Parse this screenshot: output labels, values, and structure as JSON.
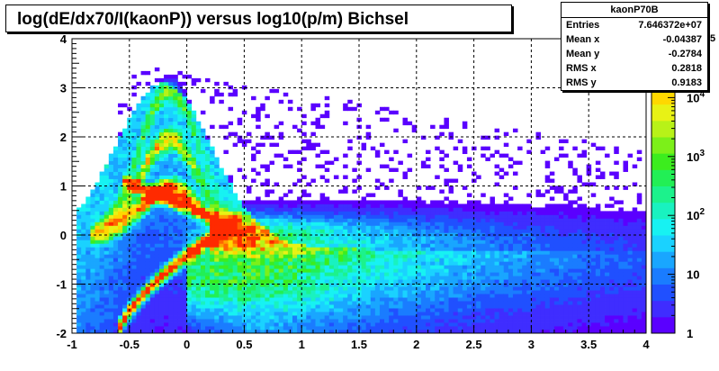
{
  "title": "log(dE/dx70/I(kaonP)) versus log10(p/m) Bichsel",
  "stats": {
    "name": "kaonP70B",
    "rows": [
      {
        "label": "Entries",
        "value": "7.646372e+07"
      },
      {
        "label": "Mean x",
        "value": "-0.04387"
      },
      {
        "label": "Mean y",
        "value": "-0.2784"
      },
      {
        "label": "RMS x",
        "value": "0.2818"
      },
      {
        "label": "RMS y",
        "value": "0.9183"
      }
    ]
  },
  "chart_data": {
    "type": "heatmap",
    "title": "log(dE/dx70/I(kaonP)) versus log10(p/m) Bichsel",
    "xlim": [
      -1,
      4
    ],
    "ylim": [
      -2,
      4
    ],
    "x_ticks": [
      "-1",
      "-0.5",
      "0",
      "0.5",
      "1",
      "1.5",
      "2",
      "2.5",
      "3",
      "3.5",
      "4"
    ],
    "y_ticks": [
      "-2",
      "-1",
      "0",
      "1",
      "2",
      "3",
      "4"
    ],
    "z_scale": "log",
    "z_ticks": [
      {
        "value": 1,
        "label": "1"
      },
      {
        "value": 10,
        "label": "10"
      },
      {
        "value": 100,
        "label": "10",
        "exp": "2"
      },
      {
        "value": 1000,
        "label": "10",
        "exp": "3"
      },
      {
        "value": 10000,
        "label": "10",
        "exp": "4"
      }
    ],
    "z_top_label": "5",
    "grid": true,
    "palette": [
      "#5a00ff",
      "#3f2dff",
      "#2050ff",
      "#1a7cff",
      "#19a6ff",
      "#1ad2ff",
      "#17f2f2",
      "#19f2c0",
      "#1cf28c",
      "#22ef55",
      "#3ced1e",
      "#7cf019",
      "#b8f218",
      "#e8f215",
      "#ffd800",
      "#ffa000",
      "#ff6600",
      "#ff2a00"
    ]
  }
}
